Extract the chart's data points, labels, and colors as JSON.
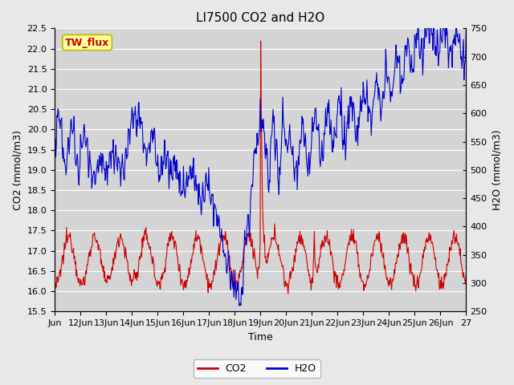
{
  "title": "LI7500 CO2 and H2O",
  "xlabel": "Time",
  "ylabel_left": "CO2 (mmol/m3)",
  "ylabel_right": "H2O (mmol/m3)",
  "ylim_left": [
    15.5,
    22.5
  ],
  "ylim_right": [
    250,
    750
  ],
  "yticks_left": [
    15.5,
    16.0,
    16.5,
    17.0,
    17.5,
    18.0,
    18.5,
    19.0,
    19.5,
    20.0,
    20.5,
    21.0,
    21.5,
    22.0,
    22.5
  ],
  "yticks_right": [
    250,
    300,
    350,
    400,
    450,
    500,
    550,
    600,
    650,
    700,
    750
  ],
  "xtick_labels": [
    "Jun",
    "12Jun",
    "13Jun",
    "14Jun",
    "15Jun",
    "16Jun",
    "17Jun",
    "18Jun",
    "19Jun",
    "20Jun",
    "21Jun",
    "22Jun",
    "23Jun",
    "24Jun",
    "25Jun",
    "26Jun",
    "27"
  ],
  "co2_color": "#cc0000",
  "h2o_color": "#0000cc",
  "background_color": "#e8e8e8",
  "plot_bg_color": "#d4d4d4",
  "annotation_text": "TW_flux",
  "annotation_bg": "#ffff99",
  "annotation_border": "#bbbb00",
  "annotation_fg": "#cc0000",
  "legend_co2": "CO2",
  "legend_h2o": "H2O",
  "title_fontsize": 11,
  "axis_fontsize": 9,
  "tick_fontsize": 8
}
